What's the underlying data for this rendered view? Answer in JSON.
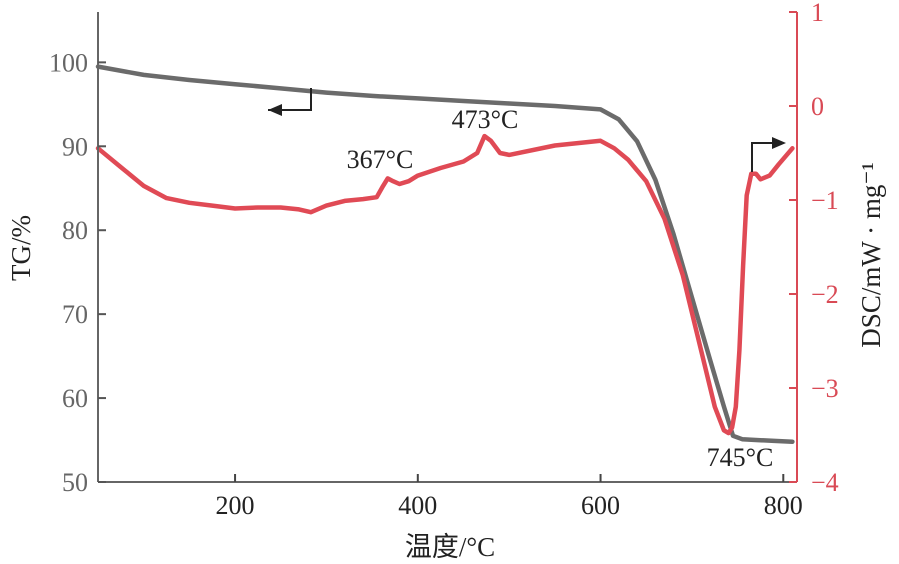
{
  "chart_data": {
    "type": "line",
    "title": "",
    "xlabel": "温度/°C",
    "ylabel_left": "TG/%",
    "ylabel_right": "DSC/mW · mg⁻¹",
    "xlim": [
      50,
      815
    ],
    "ylim_left": [
      50,
      106
    ],
    "ylim_right": [
      -4,
      1
    ],
    "x_ticks": [
      200,
      400,
      600,
      800
    ],
    "y_left_ticks": [
      50,
      60,
      70,
      80,
      90,
      100
    ],
    "y_right_ticks": [
      -4,
      -3,
      -2,
      -1,
      0,
      1
    ],
    "x_tick_labels": [
      "200",
      "400",
      "600",
      "800"
    ],
    "y_left_tick_labels": [
      "50",
      "60",
      "70",
      "80",
      "90",
      "100"
    ],
    "y_right_tick_labels": [
      "−4",
      "−3",
      "−2",
      "−1",
      "0",
      "1"
    ],
    "grid": false,
    "colors": {
      "tg": "#6b6b6b",
      "dsc": "#e04a55",
      "right_axis": "#d94a55",
      "left_axis": "#666666"
    },
    "series": [
      {
        "name": "TG",
        "axis": "left",
        "x": [
          50,
          100,
          150,
          200,
          250,
          300,
          350,
          400,
          450,
          500,
          550,
          600,
          620,
          640,
          660,
          680,
          700,
          720,
          735,
          745,
          755,
          770,
          790,
          810
        ],
        "y": [
          99.5,
          98.5,
          97.9,
          97.4,
          96.9,
          96.4,
          96.0,
          95.7,
          95.4,
          95.1,
          94.8,
          94.4,
          93.2,
          90.6,
          86.0,
          79.5,
          72.0,
          64.5,
          59.0,
          55.5,
          55.1,
          55.0,
          54.9,
          54.8
        ]
      },
      {
        "name": "DSC",
        "axis": "right",
        "x": [
          50,
          75,
          100,
          125,
          150,
          175,
          200,
          225,
          250,
          270,
          283,
          300,
          320,
          340,
          355,
          362,
          367,
          373,
          380,
          390,
          400,
          425,
          450,
          465,
          473,
          480,
          490,
          500,
          550,
          600,
          615,
          630,
          650,
          670,
          690,
          710,
          725,
          735,
          740,
          744,
          748,
          752,
          756,
          760,
          765,
          770,
          775,
          785,
          795,
          810
        ],
        "y": [
          -0.45,
          -0.65,
          -0.85,
          -0.98,
          -1.03,
          -1.06,
          -1.09,
          -1.08,
          -1.08,
          -1.1,
          -1.13,
          -1.06,
          -1.01,
          -0.99,
          -0.97,
          -0.85,
          -0.77,
          -0.8,
          -0.83,
          -0.8,
          -0.74,
          -0.66,
          -0.59,
          -0.5,
          -0.32,
          -0.37,
          -0.5,
          -0.52,
          -0.42,
          -0.37,
          -0.45,
          -0.57,
          -0.8,
          -1.2,
          -1.8,
          -2.6,
          -3.2,
          -3.45,
          -3.48,
          -3.42,
          -3.2,
          -2.6,
          -1.7,
          -0.95,
          -0.72,
          -0.72,
          -0.78,
          -0.74,
          -0.62,
          -0.45
        ]
      }
    ],
    "annotations": {
      "peak_367": "367°C",
      "peak_473": "473°C",
      "peak_745": "745°C"
    }
  }
}
